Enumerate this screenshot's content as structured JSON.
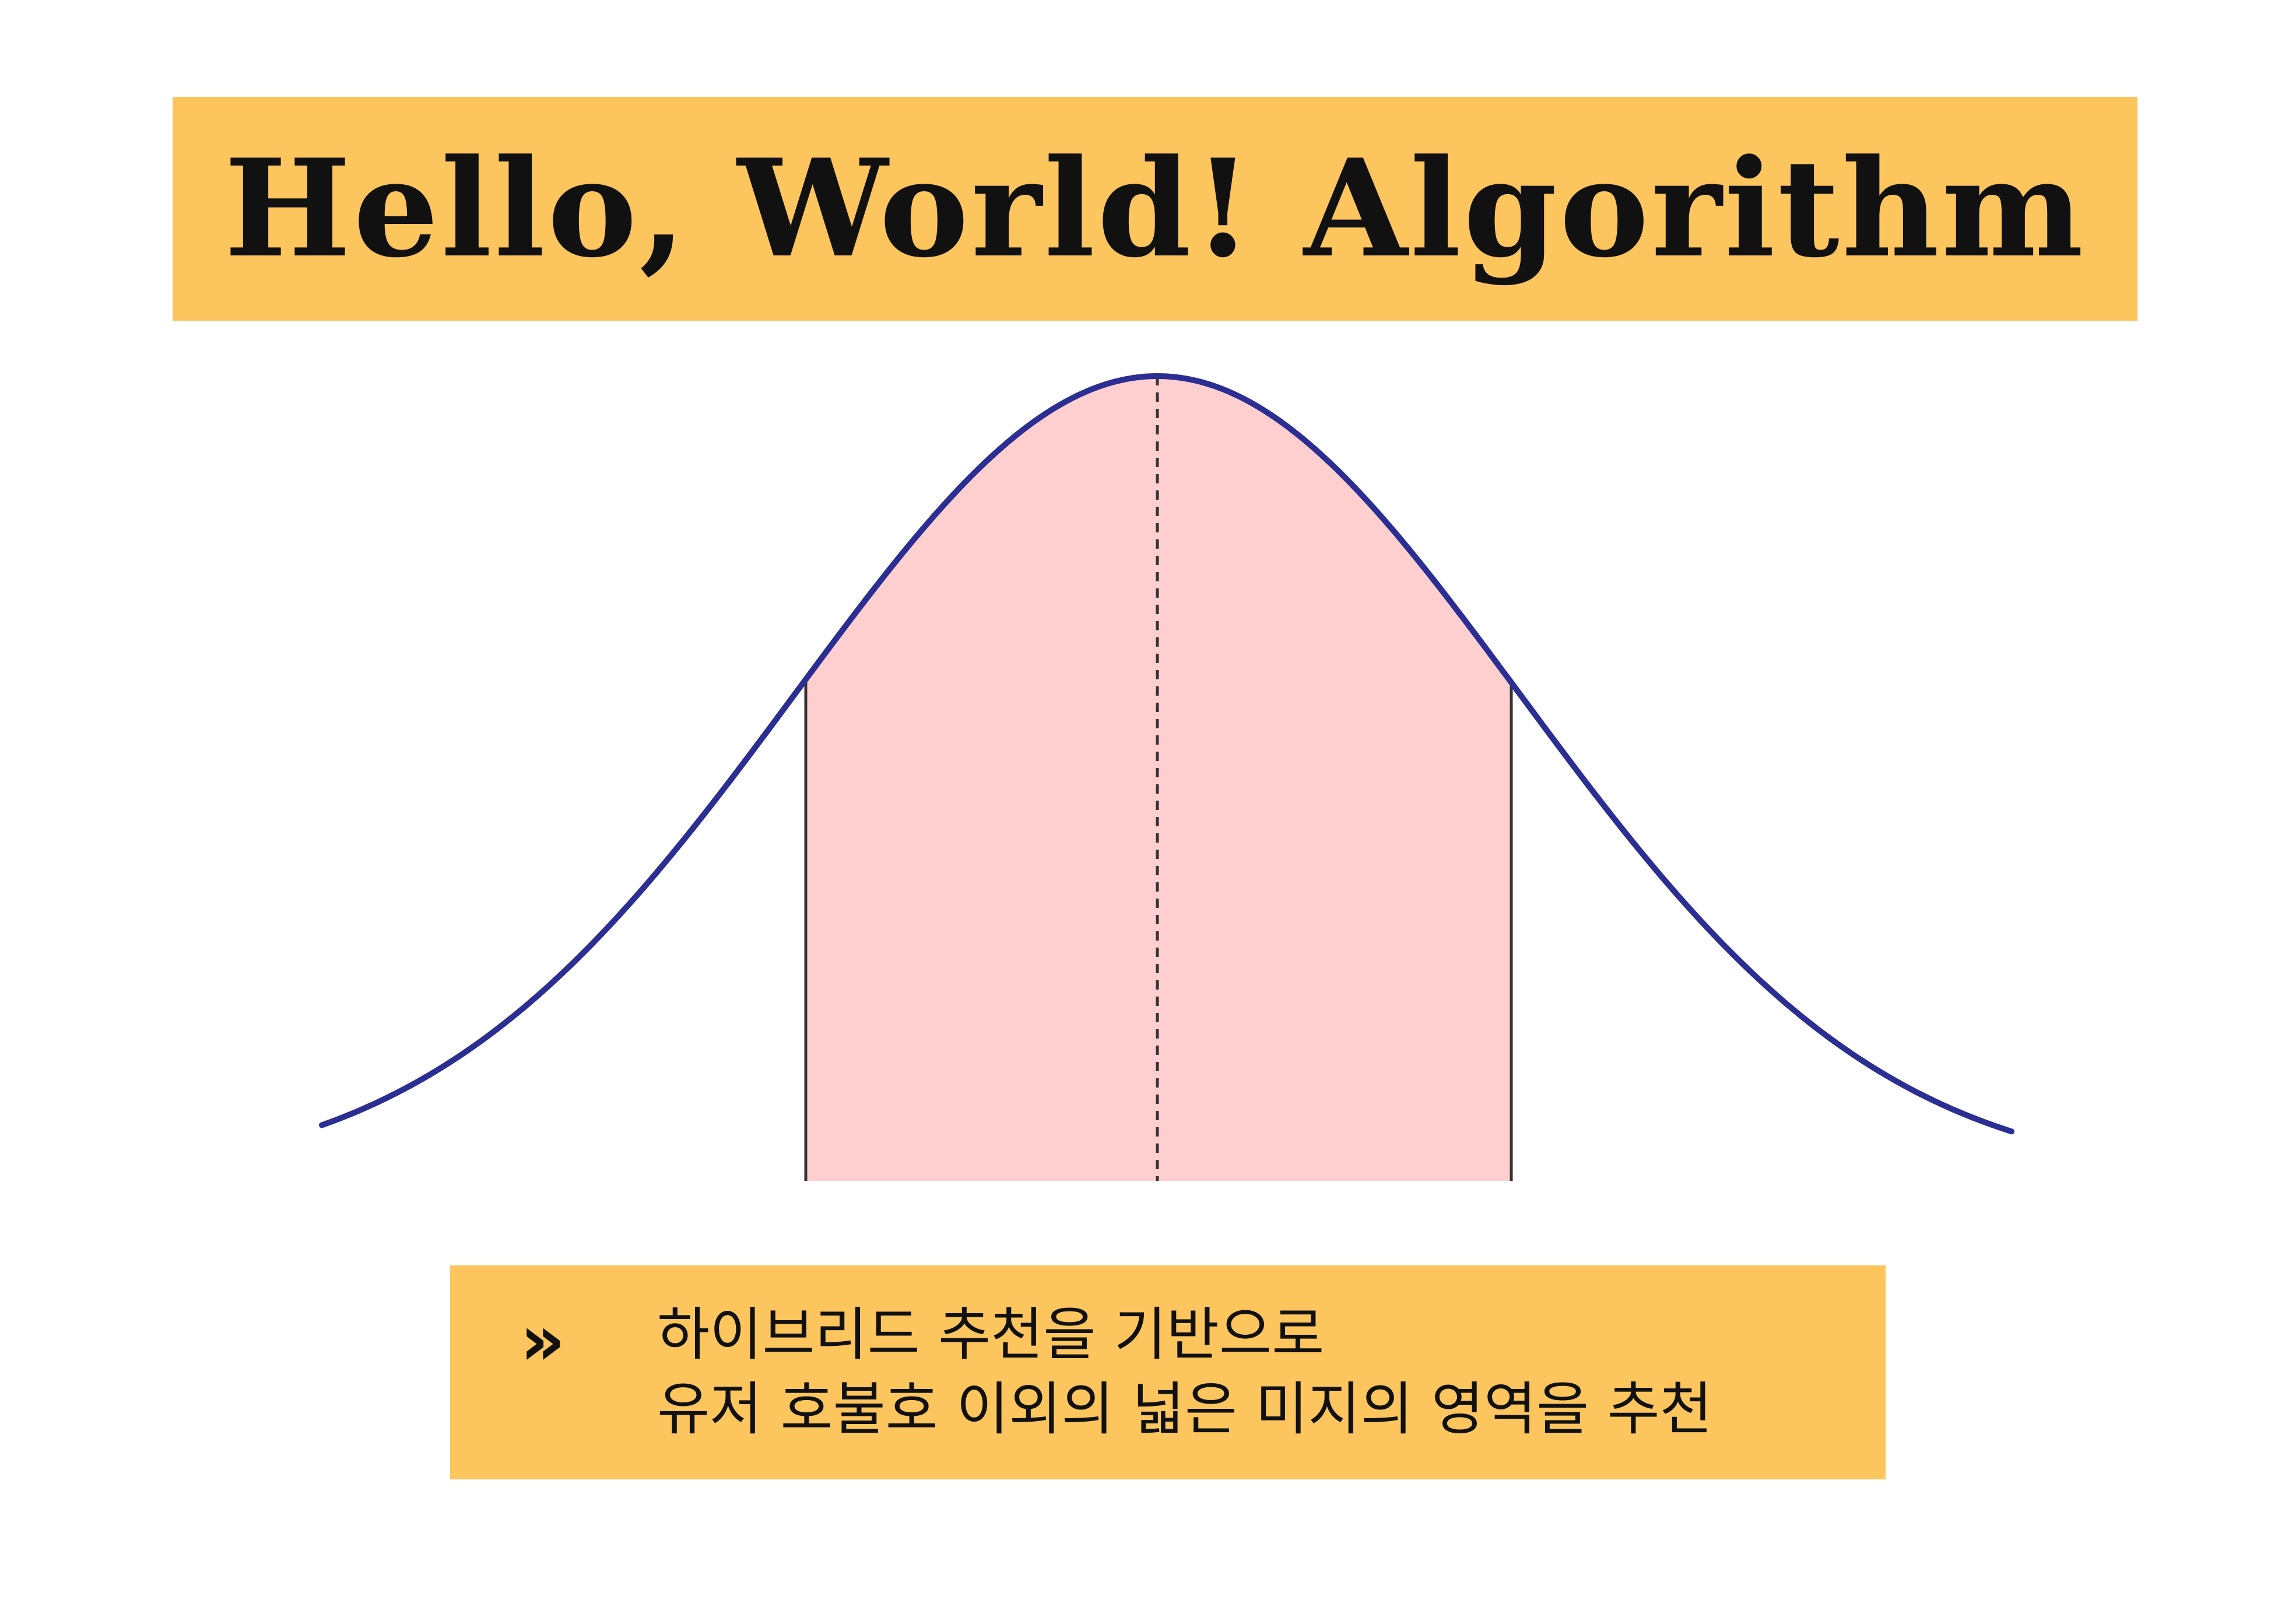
{
  "title": "Hello, World! Algorithm",
  "colors": {
    "banner": "#fcc55e",
    "caption_box": "#fcc55e",
    "curve": "#2b2e92",
    "fill": "#ffcfd0",
    "lines": "#333333"
  },
  "caption": {
    "icon": "double-chevron-right-icon",
    "icon_glyph": "»",
    "lines": [
      "하이브리드 추천을 기반으로",
      "유저 호불호 이외의 넓은 미지의 영역을 추천"
    ]
  }
}
